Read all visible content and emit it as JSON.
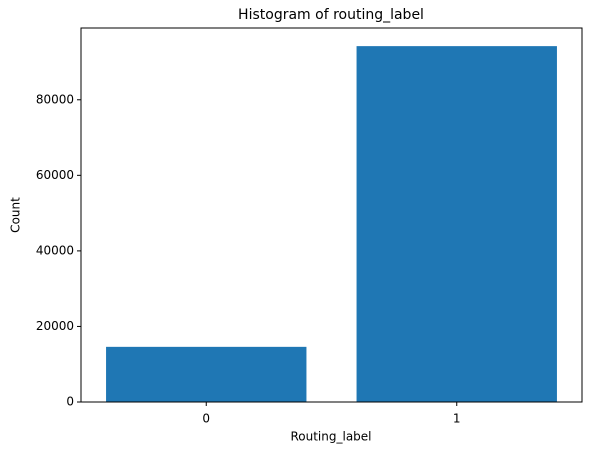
{
  "chart_data": {
    "type": "bar",
    "title": "Histogram of routing_label",
    "x_label": "Routing_label",
    "y_label": "Count",
    "categories": [
      "0",
      "1"
    ],
    "values": [
      14600,
      94200
    ],
    "color": "#1f77b4",
    "ylim": [
      0,
      99000
    ],
    "yticks": [
      0,
      20000,
      40000,
      60000,
      80000
    ],
    "grid": false
  }
}
